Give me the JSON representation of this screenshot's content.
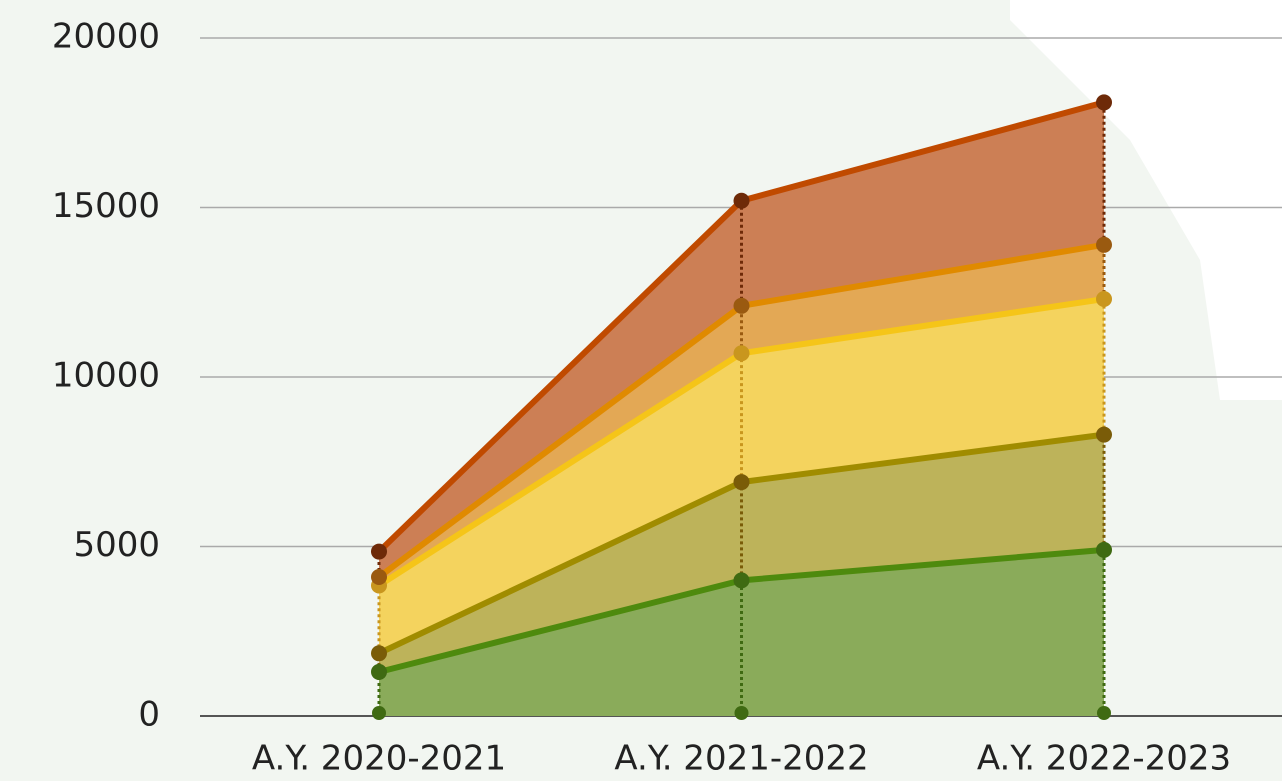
{
  "chart_data": {
    "type": "stacked_area",
    "categories": [
      "A.Y. 2020-2021",
      "A.Y. 2021-2022",
      "A.Y. 2022-2023"
    ],
    "series": [
      {
        "color": "#4e8a0e",
        "fill": "#8aab5a",
        "marker_color": "#3f6a12",
        "values": [
          1300,
          4000,
          4900
        ]
      },
      {
        "color": "#a08c00",
        "fill": "#bdb35a",
        "marker_color": "#7a5c08",
        "values": [
          550,
          2900,
          3400
        ]
      },
      {
        "color": "#f5c518",
        "fill": "#f4d35e",
        "marker_color": "#c9961e",
        "values": [
          2000,
          3800,
          4000
        ]
      },
      {
        "color": "#e08a00",
        "fill": "#e3a855",
        "marker_color": "#9a5a10",
        "values": [
          250,
          1400,
          1600
        ]
      },
      {
        "color": "#c04a00",
        "fill": "#cc7f55",
        "marker_color": "#6e2a08",
        "values": [
          750,
          3100,
          4200
        ]
      }
    ],
    "ylim": [
      0,
      20000
    ],
    "yticks": [
      0,
      5000,
      10000,
      15000,
      20000
    ],
    "grid": true
  }
}
